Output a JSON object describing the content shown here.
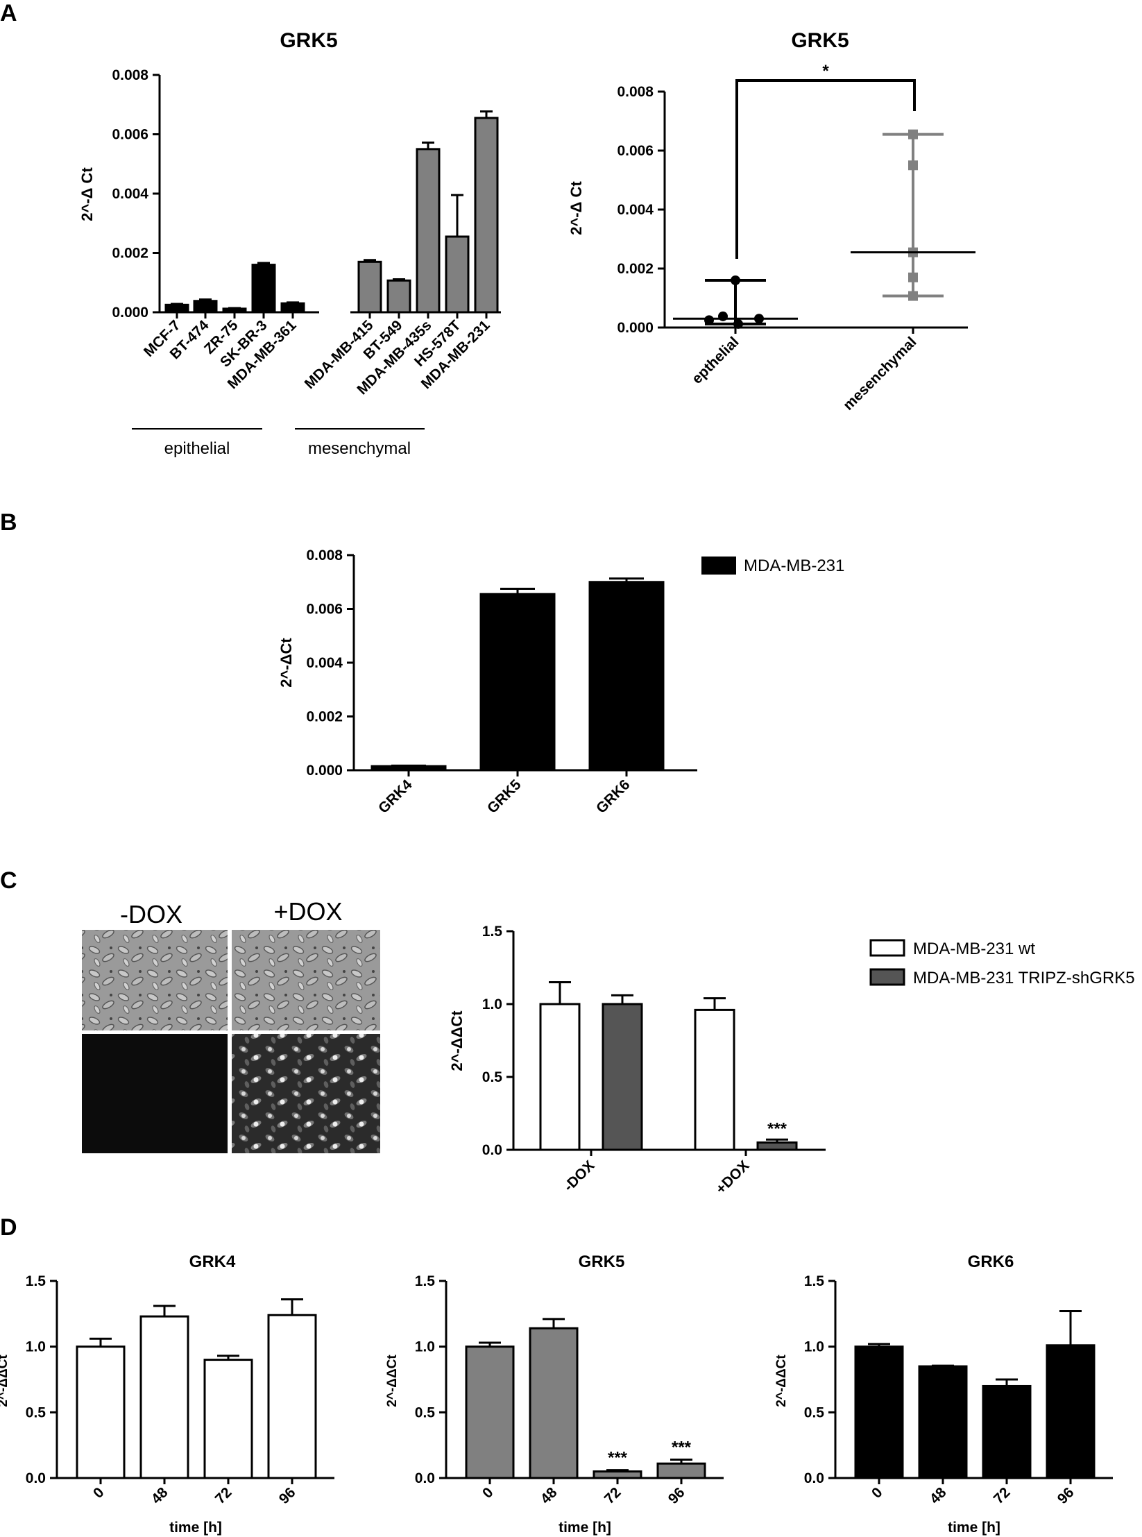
{
  "panels": {
    "A": "A",
    "B": "B",
    "C": "C",
    "D": "D"
  },
  "colors": {
    "epithelial": "#000000",
    "mesenchymal": "#808080",
    "wt": "#ffffff",
    "shGRK5": "#555555",
    "grk4": "#ffffff",
    "grk5": "#808080",
    "grk6": "#000000"
  },
  "micrographs": {
    "minus_label": "-DOX",
    "plus_label": "+DOX"
  },
  "chart_data": [
    {
      "id": "a1",
      "type": "bar",
      "title": "GRK5",
      "ylabel": "2^-Δ Ct",
      "ylim": [
        0,
        0.008
      ],
      "yticks": [
        "0.000",
        "0.002",
        "0.004",
        "0.006",
        "0.008"
      ],
      "categories": [
        "MCF-7",
        "BT-474",
        "ZR-75",
        "SK-BR-3",
        "MDA-MB-361",
        "MDA-MB-415",
        "BT-549",
        "MDA-MB-435s",
        "HS-578T",
        "MDA-MB-231"
      ],
      "values": [
        0.00025,
        0.00038,
        0.00012,
        0.0016,
        0.0003,
        0.0017,
        0.00107,
        0.0055,
        0.00255,
        0.00655
      ],
      "errors": [
        3e-05,
        5e-05,
        2e-05,
        6e-05,
        3e-05,
        6e-05,
        4e-05,
        0.00022,
        0.0014,
        0.00022
      ],
      "groups": [
        {
          "name": "epithelial",
          "indices": [
            0,
            1,
            2,
            3,
            4
          ]
        },
        {
          "name": "mesenchymal",
          "indices": [
            5,
            6,
            7,
            8,
            9
          ]
        }
      ]
    },
    {
      "id": "a2",
      "type": "scatter",
      "title": "GRK5",
      "ylabel": "2^-Δ Ct",
      "ylim": [
        0,
        0.008
      ],
      "yticks": [
        "0.000",
        "0.002",
        "0.004",
        "0.006",
        "0.008"
      ],
      "categories": [
        "epthelial",
        "mesenchymal"
      ],
      "points": [
        [
          0.00025,
          0.00038,
          0.00012,
          0.0016,
          0.0003
        ],
        [
          0.0017,
          0.00107,
          0.0055,
          0.00255,
          0.00655
        ]
      ],
      "median": [
        0.0003,
        0.00255
      ],
      "range": [
        [
          0.00012,
          0.0016
        ],
        [
          0.00107,
          0.00655
        ]
      ],
      "significance": "*"
    },
    {
      "id": "b",
      "type": "bar",
      "ylabel": "2^-ΔCt",
      "ylim": [
        0,
        0.008
      ],
      "yticks": [
        "0.000",
        "0.002",
        "0.004",
        "0.006",
        "0.008"
      ],
      "categories": [
        "GRK4",
        "GRK5",
        "GRK6"
      ],
      "series": [
        {
          "name": "MDA-MB-231",
          "values": [
            0.00015,
            0.00655,
            0.007
          ],
          "errors": [
            2e-05,
            0.0002,
            0.00013
          ]
        }
      ],
      "legend": "top-right"
    },
    {
      "id": "c",
      "type": "bar",
      "ylabel": "2^-ΔΔCt",
      "ylim": [
        0,
        1.5
      ],
      "yticks": [
        "0.0",
        "0.5",
        "1.0",
        "1.5"
      ],
      "categories": [
        "-DOX",
        "+DOX"
      ],
      "series": [
        {
          "name": "MDA-MB-231 wt",
          "values": [
            1.0,
            0.96
          ],
          "errors": [
            0.15,
            0.08
          ]
        },
        {
          "name": "MDA-MB-231 TRIPZ-shGRK5",
          "values": [
            1.0,
            0.05
          ],
          "errors": [
            0.06,
            0.02
          ]
        }
      ],
      "annotations": [
        {
          "series": 1,
          "index": 1,
          "text": "***"
        }
      ],
      "legend": "top-right"
    },
    {
      "id": "d1",
      "type": "bar",
      "title": "GRK4",
      "ylabel": "2^-ΔΔCt",
      "xlabel": "time [h]",
      "ylim": [
        0,
        1.5
      ],
      "yticks": [
        "0.0",
        "0.5",
        "1.0",
        "1.5"
      ],
      "categories": [
        "0",
        "48",
        "72",
        "96"
      ],
      "values": [
        1.0,
        1.23,
        0.9,
        1.24
      ],
      "errors": [
        0.06,
        0.08,
        0.03,
        0.12
      ],
      "annotations": []
    },
    {
      "id": "d2",
      "type": "bar",
      "title": "GRK5",
      "ylabel": "2^-ΔΔCt",
      "xlabel": "time [h]",
      "ylim": [
        0,
        1.5
      ],
      "yticks": [
        "0.0",
        "0.5",
        "1.0",
        "1.5"
      ],
      "categories": [
        "0",
        "48",
        "72",
        "96"
      ],
      "values": [
        1.0,
        1.14,
        0.05,
        0.11
      ],
      "errors": [
        0.03,
        0.07,
        0.01,
        0.03
      ],
      "annotations": [
        {
          "index": 2,
          "text": "***"
        },
        {
          "index": 3,
          "text": "***"
        }
      ]
    },
    {
      "id": "d3",
      "type": "bar",
      "title": "GRK6",
      "ylabel": "2^-ΔΔCt",
      "xlabel": "time [h]",
      "ylim": [
        0,
        1.5
      ],
      "yticks": [
        "0.0",
        "0.5",
        "1.0",
        "1.5"
      ],
      "categories": [
        "0",
        "48",
        "72",
        "96"
      ],
      "values": [
        1.0,
        0.85,
        0.7,
        1.01
      ],
      "errors": [
        0.02,
        0.005,
        0.05,
        0.26
      ],
      "annotations": []
    }
  ]
}
